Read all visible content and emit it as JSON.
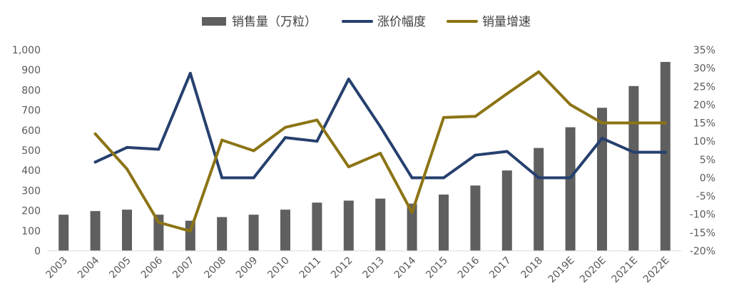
{
  "chart_data": {
    "type": "bar",
    "categories": [
      "2003",
      "2004",
      "2005",
      "2006",
      "2007",
      "2008",
      "2009",
      "2010",
      "2011",
      "2012",
      "2013",
      "2014",
      "2015",
      "2016",
      "2017",
      "2018",
      "2019E",
      "2020E",
      "2021E",
      "2022E"
    ],
    "left_axis": {
      "min": 0,
      "max": 1000,
      "step": 100,
      "tick_labels": [
        "0",
        "100",
        "200",
        "300",
        "400",
        "500",
        "600",
        "700",
        "800",
        "900",
        "1,000"
      ]
    },
    "right_axis": {
      "min": -20,
      "max": 35,
      "step": 5,
      "tick_labels": [
        "-20%",
        "-15%",
        "-10%",
        "-5%",
        "0%",
        "5%",
        "10%",
        "15%",
        "20%",
        "25%",
        "30%",
        "35%"
      ]
    },
    "series": [
      {
        "name": "销售量（万粒）",
        "kind": "bar",
        "axis": "left",
        "color": "#5f5f5f",
        "values": [
          180,
          198,
          205,
          180,
          150,
          168,
          180,
          205,
          240,
          250,
          260,
          235,
          280,
          325,
          400,
          512,
          615,
          712,
          820,
          940
        ]
      },
      {
        "name": "涨价幅度",
        "kind": "line",
        "axis": "right",
        "color": "#26406e",
        "values": [
          null,
          4.3,
          8.3,
          7.8,
          28.6,
          0,
          0,
          11.0,
          10.0,
          27.0,
          14.0,
          0,
          0,
          6.2,
          7.2,
          0,
          0,
          10.8,
          7.0,
          7.0
        ]
      },
      {
        "name": "销量增速",
        "kind": "line",
        "axis": "right",
        "color": "#8c7415",
        "values": [
          null,
          12.0,
          2.4,
          -12.2,
          -14.6,
          10.3,
          7.4,
          13.8,
          15.8,
          3.0,
          6.7,
          -9.5,
          16.5,
          16.8,
          23.0,
          29.0,
          20.0,
          15.0,
          15.0,
          15.0
        ]
      }
    ],
    "legend_position": "top",
    "grid": false
  }
}
